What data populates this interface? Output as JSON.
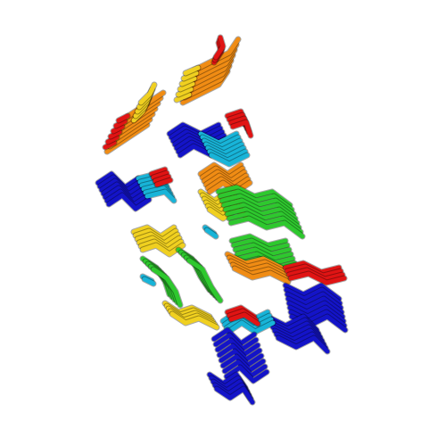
{
  "scene": {
    "subject": "protein-fibril-ribbon-model",
    "background_color": "#ffffff",
    "palette": {
      "blue": "#1414c8",
      "cyan": "#18b4d8",
      "green": "#2ec82e",
      "yellow": "#f0d020",
      "orange": "#f08c14",
      "red": "#e01414",
      "grey": "#a0a0a0"
    }
  }
}
